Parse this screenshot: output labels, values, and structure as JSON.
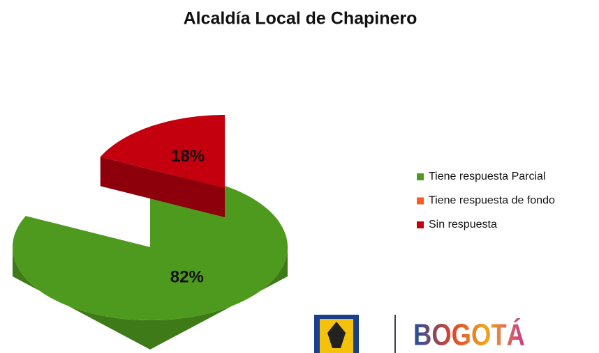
{
  "chart_data": {
    "type": "pie3d",
    "title": "Alcaldía Local de Chapinero",
    "categories": [
      "Tiene respuesta Parcial",
      "Tiene respuesta de fondo",
      "Sin respuesta"
    ],
    "values": [
      82,
      0,
      18
    ],
    "value_labels": [
      "82%",
      null,
      "18%"
    ],
    "colors": [
      "#4e9a1e",
      "#ff5a1f",
      "#c4000f"
    ],
    "legend": "right"
  },
  "footer": {
    "logo_text": "BOGOTÁ"
  }
}
